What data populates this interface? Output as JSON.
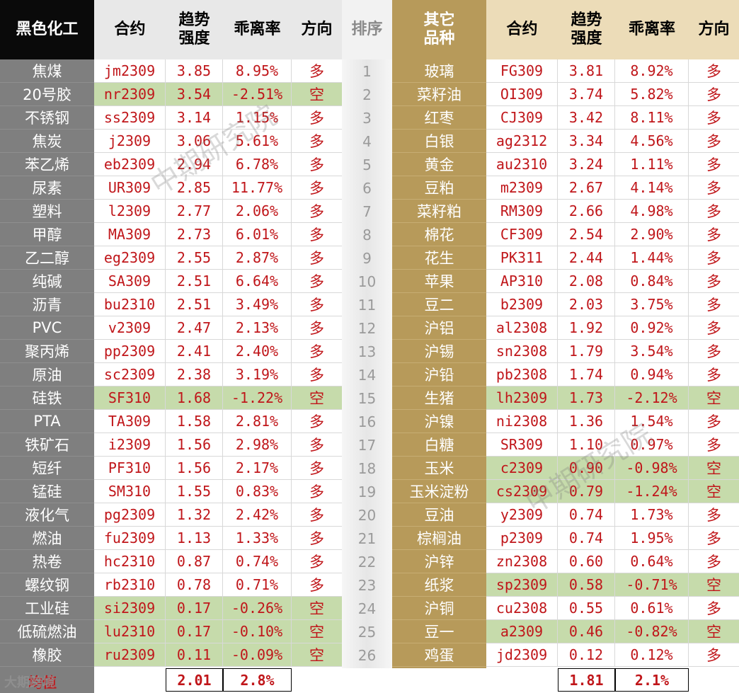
{
  "colors": {
    "left_header_bg": "#0a0a0a",
    "left_name_bg": "#7f7f7f",
    "right_header_bg": "#b79a5a",
    "right_name_bg": "#b79a5a",
    "light_header_bg": "#e8e8e8",
    "right_light_header_bg": "#ecdcb8",
    "short_highlight": "#c6dbab",
    "text_red": "#c0161a"
  },
  "header": {
    "left_category": "黑色化工",
    "contract": "合约",
    "strength_line1": "趋势",
    "strength_line2": "强度",
    "deviation": "乖离率",
    "direction": "方向",
    "rank": "排序",
    "right_category_line1": "其它",
    "right_category_line2": "品种"
  },
  "left_rows": [
    {
      "name": "焦煤",
      "contract": "jm2309",
      "strength": "3.85",
      "deviation": "8.95%",
      "direction": "多",
      "short": false
    },
    {
      "name": "20号胶",
      "contract": "nr2309",
      "strength": "3.54",
      "deviation": "-2.51%",
      "direction": "空",
      "short": true
    },
    {
      "name": "不锈钢",
      "contract": "ss2309",
      "strength": "3.14",
      "deviation": "1.15%",
      "direction": "多",
      "short": false
    },
    {
      "name": "焦炭",
      "contract": "j2309",
      "strength": "3.06",
      "deviation": "5.61%",
      "direction": "多",
      "short": false
    },
    {
      "name": "苯乙烯",
      "contract": "eb2309",
      "strength": "2.94",
      "deviation": "6.78%",
      "direction": "多",
      "short": false
    },
    {
      "name": "尿素",
      "contract": "UR309",
      "strength": "2.85",
      "deviation": "11.77%",
      "direction": "多",
      "short": false
    },
    {
      "name": "塑料",
      "contract": "l2309",
      "strength": "2.77",
      "deviation": "2.06%",
      "direction": "多",
      "short": false
    },
    {
      "name": "甲醇",
      "contract": "MA309",
      "strength": "2.73",
      "deviation": "6.01%",
      "direction": "多",
      "short": false
    },
    {
      "name": "乙二醇",
      "contract": "eg2309",
      "strength": "2.55",
      "deviation": "2.87%",
      "direction": "多",
      "short": false
    },
    {
      "name": "纯碱",
      "contract": "SA309",
      "strength": "2.51",
      "deviation": "6.64%",
      "direction": "多",
      "short": false
    },
    {
      "name": "沥青",
      "contract": "bu2310",
      "strength": "2.51",
      "deviation": "3.49%",
      "direction": "多",
      "short": false
    },
    {
      "name": "PVC",
      "contract": "v2309",
      "strength": "2.47",
      "deviation": "2.13%",
      "direction": "多",
      "short": false
    },
    {
      "name": "聚丙烯",
      "contract": "pp2309",
      "strength": "2.41",
      "deviation": "2.40%",
      "direction": "多",
      "short": false
    },
    {
      "name": "原油",
      "contract": "sc2309",
      "strength": "2.38",
      "deviation": "3.19%",
      "direction": "多",
      "short": false
    },
    {
      "name": "硅铁",
      "contract": "SF310",
      "strength": "1.68",
      "deviation": "-1.22%",
      "direction": "空",
      "short": true
    },
    {
      "name": "PTA",
      "contract": "TA309",
      "strength": "1.58",
      "deviation": "2.81%",
      "direction": "多",
      "short": false
    },
    {
      "name": "铁矿石",
      "contract": "i2309",
      "strength": "1.56",
      "deviation": "2.98%",
      "direction": "多",
      "short": false
    },
    {
      "name": "短纤",
      "contract": "PF310",
      "strength": "1.56",
      "deviation": "2.17%",
      "direction": "多",
      "short": false
    },
    {
      "name": "锰硅",
      "contract": "SM310",
      "strength": "1.55",
      "deviation": "0.83%",
      "direction": "多",
      "short": false
    },
    {
      "name": "液化气",
      "contract": "pg2309",
      "strength": "1.32",
      "deviation": "2.42%",
      "direction": "多",
      "short": false
    },
    {
      "name": "燃油",
      "contract": "fu2309",
      "strength": "1.13",
      "deviation": "1.33%",
      "direction": "多",
      "short": false
    },
    {
      "name": "热卷",
      "contract": "hc2310",
      "strength": "0.87",
      "deviation": "0.74%",
      "direction": "多",
      "short": false
    },
    {
      "name": "螺纹钢",
      "contract": "rb2310",
      "strength": "0.78",
      "deviation": "0.71%",
      "direction": "多",
      "short": false
    },
    {
      "name": "工业硅",
      "contract": "si2309",
      "strength": "0.17",
      "deviation": "-0.26%",
      "direction": "空",
      "short": true
    },
    {
      "name": "低硫燃油",
      "contract": "lu2310",
      "strength": "0.17",
      "deviation": "-0.10%",
      "direction": "空",
      "short": true
    },
    {
      "name": "橡胶",
      "contract": "ru2309",
      "strength": "0.11",
      "deviation": "-0.09%",
      "direction": "空",
      "short": true
    }
  ],
  "right_rows": [
    {
      "rank": "1",
      "name": "玻璃",
      "contract": "FG309",
      "strength": "3.81",
      "deviation": "8.92%",
      "direction": "多",
      "short": false
    },
    {
      "rank": "2",
      "name": "菜籽油",
      "contract": "OI309",
      "strength": "3.74",
      "deviation": "5.82%",
      "direction": "多",
      "short": false
    },
    {
      "rank": "3",
      "name": "红枣",
      "contract": "CJ309",
      "strength": "3.42",
      "deviation": "8.11%",
      "direction": "多",
      "short": false
    },
    {
      "rank": "4",
      "name": "白银",
      "contract": "ag2312",
      "strength": "3.34",
      "deviation": "4.56%",
      "direction": "多",
      "short": false
    },
    {
      "rank": "5",
      "name": "黄金",
      "contract": "au2310",
      "strength": "3.24",
      "deviation": "1.11%",
      "direction": "多",
      "short": false
    },
    {
      "rank": "6",
      "name": "豆粕",
      "contract": "m2309",
      "strength": "2.67",
      "deviation": "4.14%",
      "direction": "多",
      "short": false
    },
    {
      "rank": "7",
      "name": "菜籽粕",
      "contract": "RM309",
      "strength": "2.66",
      "deviation": "4.98%",
      "direction": "多",
      "short": false
    },
    {
      "rank": "8",
      "name": "棉花",
      "contract": "CF309",
      "strength": "2.54",
      "deviation": "2.90%",
      "direction": "多",
      "short": false
    },
    {
      "rank": "9",
      "name": "花生",
      "contract": "PK311",
      "strength": "2.44",
      "deviation": "1.44%",
      "direction": "多",
      "short": false
    },
    {
      "rank": "10",
      "name": "苹果",
      "contract": "AP310",
      "strength": "2.08",
      "deviation": "0.84%",
      "direction": "多",
      "short": false
    },
    {
      "rank": "11",
      "name": "豆二",
      "contract": "b2309",
      "strength": "2.03",
      "deviation": "3.75%",
      "direction": "多",
      "short": false
    },
    {
      "rank": "12",
      "name": "沪铝",
      "contract": "al2308",
      "strength": "1.92",
      "deviation": "0.92%",
      "direction": "多",
      "short": false
    },
    {
      "rank": "13",
      "name": "沪锡",
      "contract": "sn2308",
      "strength": "1.79",
      "deviation": "3.54%",
      "direction": "多",
      "short": false
    },
    {
      "rank": "14",
      "name": "沪铅",
      "contract": "pb2308",
      "strength": "1.74",
      "deviation": "0.94%",
      "direction": "多",
      "short": false
    },
    {
      "rank": "15",
      "name": "生猪",
      "contract": "lh2309",
      "strength": "1.73",
      "deviation": "-2.12%",
      "direction": "空",
      "short": true
    },
    {
      "rank": "16",
      "name": "沪镍",
      "contract": "ni2308",
      "strength": "1.36",
      "deviation": "1.54%",
      "direction": "多",
      "short": false
    },
    {
      "rank": "17",
      "name": "白糖",
      "contract": "SR309",
      "strength": "1.10",
      "deviation": "0.97%",
      "direction": "多",
      "short": false
    },
    {
      "rank": "18",
      "name": "玉米",
      "contract": "c2309",
      "strength": "0.90",
      "deviation": "-0.98%",
      "direction": "空",
      "short": true
    },
    {
      "rank": "19",
      "name": "玉米淀粉",
      "contract": "cs2309",
      "strength": "0.79",
      "deviation": "-1.24%",
      "direction": "空",
      "short": true
    },
    {
      "rank": "20",
      "name": "豆油",
      "contract": "y2309",
      "strength": "0.74",
      "deviation": "1.73%",
      "direction": "多",
      "short": false
    },
    {
      "rank": "21",
      "name": "棕榈油",
      "contract": "p2309",
      "strength": "0.74",
      "deviation": "1.95%",
      "direction": "多",
      "short": false
    },
    {
      "rank": "22",
      "name": "沪锌",
      "contract": "zn2308",
      "strength": "0.60",
      "deviation": "0.64%",
      "direction": "多",
      "short": false
    },
    {
      "rank": "23",
      "name": "纸浆",
      "contract": "sp2309",
      "strength": "0.58",
      "deviation": "-0.71%",
      "direction": "空",
      "short": true
    },
    {
      "rank": "24",
      "name": "沪铜",
      "contract": "cu2308",
      "strength": "0.55",
      "deviation": "0.61%",
      "direction": "多",
      "short": false
    },
    {
      "rank": "25",
      "name": "豆一",
      "contract": "a2309",
      "strength": "0.46",
      "deviation": "-0.82%",
      "direction": "空",
      "short": true
    },
    {
      "rank": "26",
      "name": "鸡蛋",
      "contract": "jd2309",
      "strength": "0.12",
      "deviation": "0.12%",
      "direction": "多",
      "short": false
    }
  ],
  "footer": {
    "label": "均值",
    "left_avg_strength": "2.01",
    "left_avg_deviation": "2.8%",
    "right_avg_strength": "1.81",
    "right_avg_deviation": "2.1%"
  },
  "watermark": "中期研究院",
  "logo_text": "大期跨境"
}
